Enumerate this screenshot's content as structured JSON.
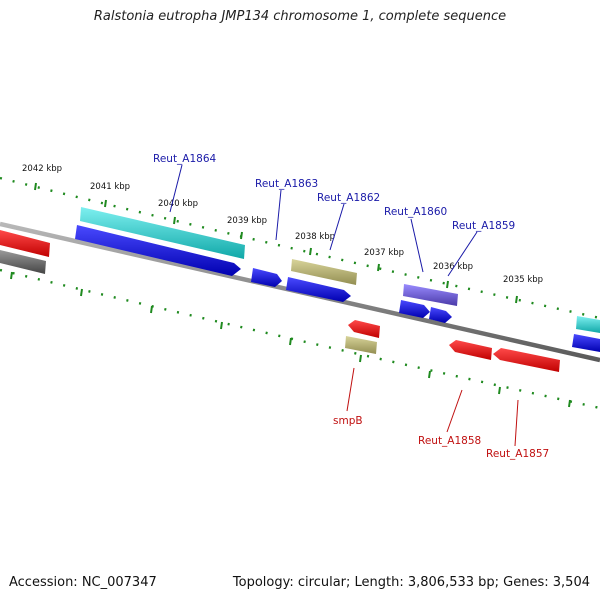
{
  "title": "Ralstonia eutropha JMP134 chromosome 1, complete sequence",
  "footer": {
    "accession": "Accession: NC_007347",
    "summary": "Topology: circular; Length: 3,806,533 bp; Genes: 3,504"
  },
  "colors": {
    "backbone": "#8c8c8c",
    "ticks": "#1f8a1f",
    "blue": "#1010e8",
    "cyan": "#22cccc",
    "red": "#ee1111",
    "khaki": "#b9b370",
    "gray": "#6e6e6e",
    "purple": "#6a5acd",
    "label_forward": "#1a1aa8",
    "label_reverse": "#c01010"
  },
  "kbp_labels": [
    {
      "text": "2042 kbp"
    },
    {
      "text": "2041 kbp"
    },
    {
      "text": "2040 kbp"
    },
    {
      "text": "2039 kbp"
    },
    {
      "text": "2038 kbp"
    },
    {
      "text": "2037 kbp"
    },
    {
      "text": "2036 kbp"
    },
    {
      "text": "2035 kbp"
    }
  ],
  "gene_labels": {
    "forward": [
      "Reut_A1864",
      "Reut_A1863",
      "Reut_A1862",
      "Reut_A1860",
      "Reut_A1859"
    ],
    "reverse": [
      "smpB",
      "Reut_A1858",
      "Reut_A1857"
    ]
  }
}
